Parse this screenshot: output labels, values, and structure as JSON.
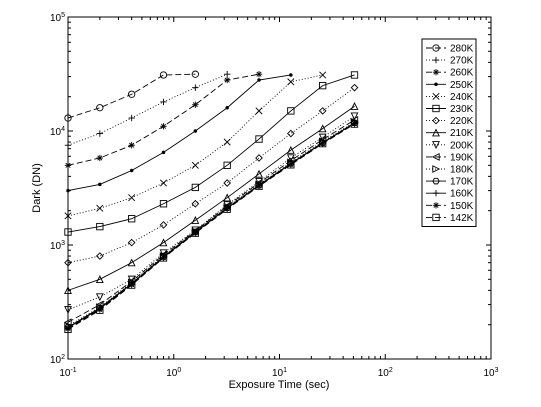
{
  "chart_data": {
    "type": "line",
    "xlabel": "Exposure Time (sec)",
    "ylabel": "Dark (DN)",
    "xscale": "log",
    "yscale": "log",
    "xlim": [
      0.1,
      1000
    ],
    "ylim": [
      100,
      100000
    ],
    "x_ticks": [
      {
        "base": "10",
        "exp": "-1"
      },
      {
        "base": "10",
        "exp": "0"
      },
      {
        "base": "10",
        "exp": "1"
      },
      {
        "base": "10",
        "exp": "2"
      },
      {
        "base": "10",
        "exp": "3"
      }
    ],
    "y_ticks": [
      {
        "base": "10",
        "exp": "2"
      },
      {
        "base": "10",
        "exp": "3"
      },
      {
        "base": "10",
        "exp": "4"
      },
      {
        "base": "10",
        "exp": "5"
      }
    ],
    "grid": false,
    "legend_position": "top-right",
    "series": [
      {
        "name": "280K",
        "marker": "circle",
        "dash": "6,3",
        "x": [
          0.1,
          0.2,
          0.4,
          0.8,
          1.6
        ],
        "y": [
          13000,
          16000,
          21000,
          31000,
          31500
        ]
      },
      {
        "name": "270K",
        "marker": "plus",
        "dash": "1,2",
        "x": [
          0.1,
          0.2,
          0.4,
          0.8,
          1.6,
          3.2
        ],
        "y": [
          7500,
          9500,
          13000,
          18000,
          24000,
          31500
        ]
      },
      {
        "name": "260K",
        "marker": "asterisk",
        "dash": "6,3",
        "x": [
          0.1,
          0.2,
          0.4,
          0.8,
          1.6,
          3.2,
          6.4
        ],
        "y": [
          5000,
          5800,
          7500,
          11000,
          17000,
          28000,
          31500
        ]
      },
      {
        "name": "250K",
        "marker": "dot",
        "dash": "",
        "x": [
          0.1,
          0.2,
          0.4,
          0.8,
          1.6,
          3.2,
          6.4,
          12.8
        ],
        "y": [
          3000,
          3400,
          4500,
          6500,
          10000,
          16000,
          28000,
          31000
        ]
      },
      {
        "name": "240K",
        "marker": "x",
        "dash": "1,2",
        "x": [
          0.1,
          0.2,
          0.4,
          0.8,
          1.6,
          3.2,
          6.4,
          12.8,
          25.6
        ],
        "y": [
          1800,
          2100,
          2600,
          3500,
          5000,
          8000,
          15000,
          27000,
          31000
        ]
      },
      {
        "name": "230K",
        "marker": "square",
        "dash": "",
        "x": [
          0.1,
          0.2,
          0.4,
          0.8,
          1.6,
          3.2,
          6.4,
          12.8,
          25.6,
          51.2
        ],
        "y": [
          1300,
          1450,
          1700,
          2300,
          3200,
          5000,
          8500,
          15000,
          25000,
          31000
        ]
      },
      {
        "name": "220K",
        "marker": "diamond",
        "dash": "1,2",
        "x": [
          0.1,
          0.2,
          0.4,
          0.8,
          1.6,
          3.2,
          6.4,
          12.8,
          25.6,
          51.2
        ],
        "y": [
          700,
          800,
          1050,
          1500,
          2300,
          3500,
          5800,
          9500,
          15000,
          24000
        ]
      },
      {
        "name": "210K",
        "marker": "tri-up",
        "dash": "",
        "x": [
          0.1,
          0.2,
          0.4,
          0.8,
          1.6,
          3.2,
          6.4,
          12.8,
          25.6,
          51.2
        ],
        "y": [
          400,
          500,
          700,
          1050,
          1650,
          2600,
          4200,
          6800,
          10500,
          16500
        ]
      },
      {
        "name": "200K",
        "marker": "tri-down",
        "dash": "1,2",
        "x": [
          0.1,
          0.2,
          0.4,
          0.8,
          1.6,
          3.2,
          6.4,
          12.8,
          25.6,
          51.2
        ],
        "y": [
          270,
          350,
          500,
          850,
          1350,
          2250,
          3600,
          5800,
          8800,
          13500
        ]
      },
      {
        "name": "190K",
        "marker": "tri-left",
        "dash": "6,3",
        "x": [
          0.1,
          0.2,
          0.4,
          0.8,
          1.6,
          3.2,
          6.4,
          12.8,
          25.6,
          51.2
        ],
        "y": [
          210,
          300,
          480,
          820,
          1330,
          2200,
          3500,
          5500,
          8400,
          12500
        ]
      },
      {
        "name": "180K",
        "marker": "tri-right",
        "dash": "1,2",
        "x": [
          0.1,
          0.2,
          0.4,
          0.8,
          1.6,
          3.2,
          6.4,
          12.8,
          25.6,
          51.2
        ],
        "y": [
          195,
          285,
          470,
          800,
          1310,
          2150,
          3400,
          5300,
          8100,
          12000
        ]
      },
      {
        "name": "170K",
        "marker": "hexagon",
        "dash": "",
        "x": [
          0.1,
          0.2,
          0.4,
          0.8,
          1.6,
          3.2,
          6.4,
          12.8,
          25.6,
          51.2
        ],
        "y": [
          190,
          280,
          460,
          790,
          1300,
          2120,
          3350,
          5200,
          7900,
          11800
        ]
      },
      {
        "name": "160K",
        "marker": "plus",
        "dash": "",
        "x": [
          0.1,
          0.2,
          0.4,
          0.8,
          1.6,
          3.2,
          6.4,
          12.8,
          25.6,
          51.2
        ],
        "y": [
          188,
          276,
          455,
          780,
          1290,
          2100,
          3320,
          5150,
          7850,
          11700
        ]
      },
      {
        "name": "150K",
        "marker": "asterisk",
        "dash": "6,3",
        "x": [
          0.1,
          0.2,
          0.4,
          0.8,
          1.6,
          3.2,
          6.4,
          12.8,
          25.6,
          51.2
        ],
        "y": [
          185,
          272,
          450,
          775,
          1280,
          2080,
          3300,
          5100,
          7800,
          11600
        ]
      },
      {
        "name": "142K",
        "marker": "square",
        "dash": "6,3",
        "x": [
          0.1,
          0.2,
          0.4,
          0.8,
          1.6,
          3.2,
          6.4,
          12.8,
          25.6,
          51.2
        ],
        "y": [
          182,
          268,
          445,
          770,
          1270,
          2060,
          3280,
          5050,
          7750,
          11500
        ]
      }
    ]
  }
}
